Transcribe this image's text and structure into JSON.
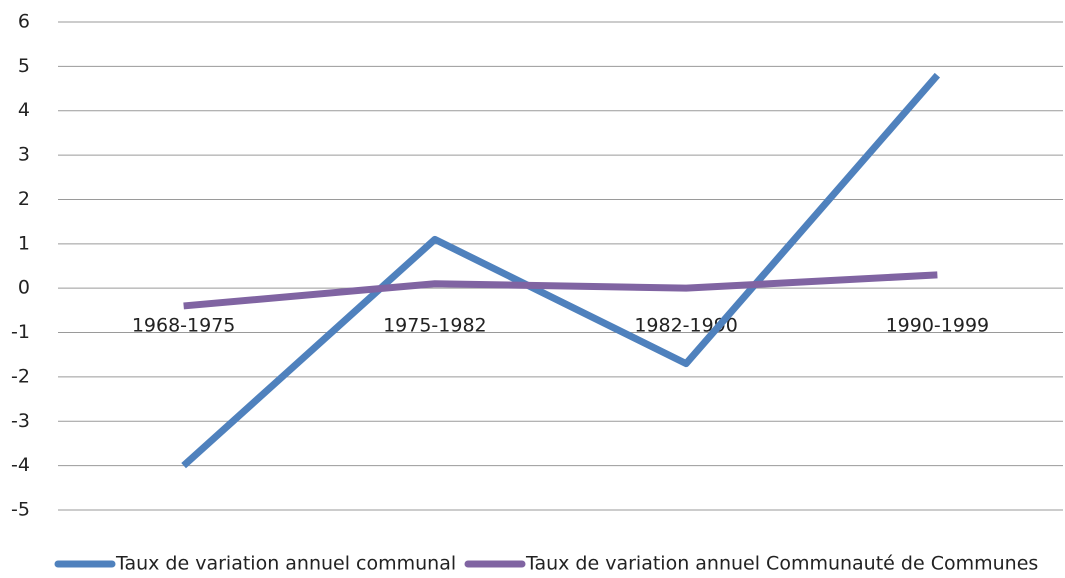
{
  "chart_data": {
    "type": "line",
    "categories": [
      "1968-1975",
      "1975-1982",
      "1982-1990",
      "1990-1999"
    ],
    "series": [
      {
        "name": "Taux de variation annuel communal",
        "color": "#4f81bd",
        "values": [
          -4.0,
          1.1,
          -1.7,
          4.8
        ]
      },
      {
        "name": "Taux de variation annuel Communauté de Communes",
        "color": "#8064a2",
        "values": [
          -0.4,
          0.1,
          0.0,
          0.3
        ]
      }
    ],
    "ylim": [
      -5,
      6
    ],
    "yticks": [
      -5,
      -4,
      -3,
      -2,
      -1,
      0,
      1,
      2,
      3,
      4,
      5,
      6
    ],
    "grid": true,
    "legend": "bottom"
  }
}
